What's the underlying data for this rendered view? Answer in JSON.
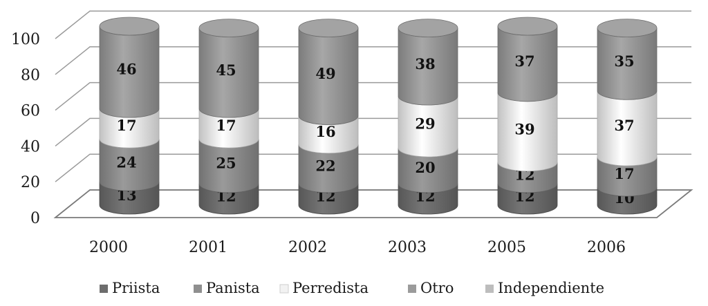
{
  "chart_data": {
    "type": "bar",
    "stacked": true,
    "style": "3d-cylinder",
    "categories": [
      "2000",
      "2001",
      "2002",
      "2003",
      "2005",
      "2006"
    ],
    "series": [
      {
        "name": "Priista",
        "values": [
          13,
          12,
          12,
          12,
          12,
          10
        ],
        "color": "#6d6d6d"
      },
      {
        "name": "Panista",
        "values": [
          24,
          25,
          22,
          20,
          12,
          17
        ],
        "color": "#8f8f8f"
      },
      {
        "name": "Perredista",
        "values": [
          17,
          17,
          16,
          29,
          39,
          37
        ],
        "color": "#f2f2f2"
      },
      {
        "name": "Otro",
        "values": [
          46,
          45,
          49,
          38,
          37,
          35
        ],
        "color": "#9b9b9b"
      },
      {
        "name": "Independiente",
        "values": [
          0,
          0,
          0,
          0,
          0,
          0
        ],
        "color": "#bdbdbd"
      }
    ],
    "y_ticks": [
      "0",
      "20",
      "40",
      "60",
      "80",
      "100"
    ],
    "ylim": [
      0,
      100
    ],
    "grid": true,
    "legend_position": "bottom",
    "title": "",
    "xlabel": "",
    "ylabel": ""
  }
}
